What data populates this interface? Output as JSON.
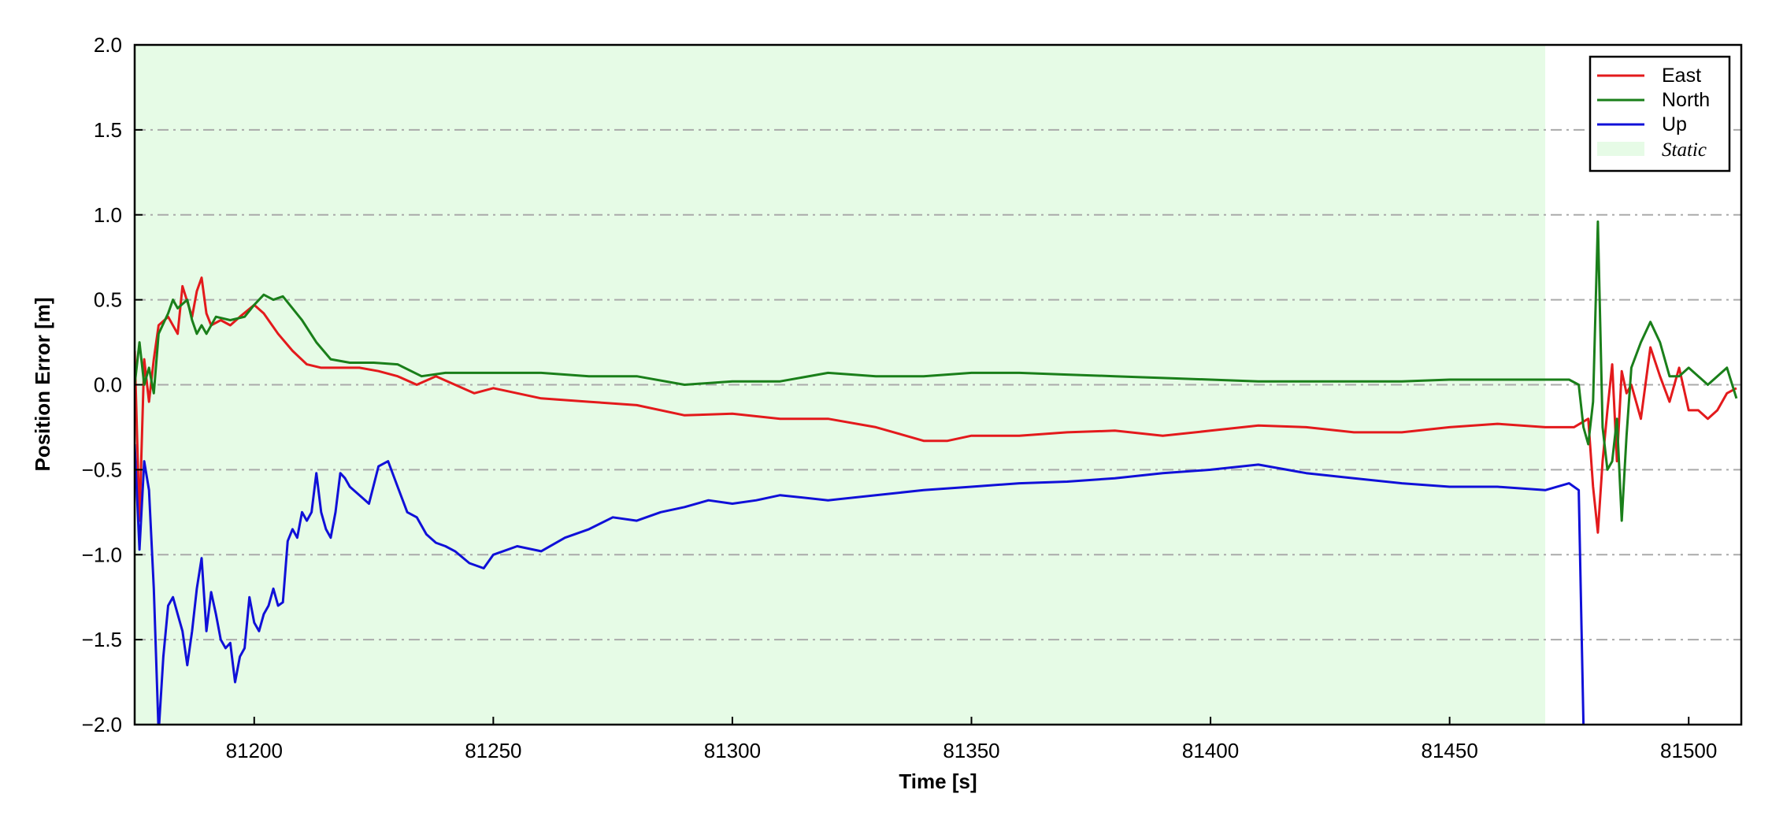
{
  "chart_data": {
    "type": "line",
    "xlabel": "Time [s]",
    "ylabel": "Position Error [m]",
    "xlim": [
      81175,
      81511
    ],
    "ylim": [
      -2.0,
      2.0
    ],
    "xticks": [
      81200,
      81250,
      81300,
      81350,
      81400,
      81450,
      81500
    ],
    "yticks": [
      2.0,
      1.5,
      1.0,
      0.5,
      0.0,
      -0.5,
      -1.0,
      -1.5,
      -2.0
    ],
    "ytick_labels": [
      "2.0",
      "1.5",
      "1.0",
      "0.5",
      "0.0",
      "−0.5",
      "−1.0",
      "−1.5",
      "−2.0"
    ],
    "grid": "horizontal dash-dot",
    "legend_placement": "top-right",
    "colors": {
      "East": "#e31a1c",
      "North": "#1a7f1a",
      "Up": "#1010d8",
      "static": "#e6fbe6",
      "grid": "#aaaaaa"
    },
    "shaded_regions": [
      {
        "label": "Static",
        "x": [
          81175,
          81470
        ]
      }
    ],
    "series": [
      {
        "name": "East",
        "color": "#e31a1c",
        "x": [
          81175,
          81176,
          81177,
          81178,
          81179,
          81180,
          81182,
          81184,
          81185,
          81187,
          81188,
          81189,
          81190,
          81191,
          81193,
          81195,
          81197,
          81200,
          81202,
          81205,
          81208,
          81211,
          81214,
          81218,
          81222,
          81226,
          81230,
          81234,
          81238,
          81242,
          81246,
          81250,
          81260,
          81270,
          81280,
          81290,
          81300,
          81310,
          81320,
          81330,
          81340,
          81345,
          81350,
          81360,
          81370,
          81380,
          81390,
          81400,
          81410,
          81420,
          81430,
          81440,
          81450,
          81460,
          81470,
          81476,
          81479,
          81480,
          81481,
          81482,
          81483,
          81484,
          81485,
          81486,
          81487,
          81488,
          81490,
          81492,
          81494,
          81496,
          81498,
          81500,
          81502,
          81504,
          81506,
          81508,
          81510
        ],
        "y": [
          0.2,
          -0.8,
          0.15,
          -0.1,
          0.15,
          0.35,
          0.4,
          0.3,
          0.58,
          0.4,
          0.55,
          0.63,
          0.42,
          0.35,
          0.38,
          0.35,
          0.4,
          0.47,
          0.42,
          0.3,
          0.2,
          0.12,
          0.1,
          0.1,
          0.1,
          0.08,
          0.05,
          0.0,
          0.05,
          0.0,
          -0.05,
          -0.02,
          -0.08,
          -0.1,
          -0.12,
          -0.18,
          -0.17,
          -0.2,
          -0.2,
          -0.25,
          -0.33,
          -0.33,
          -0.3,
          -0.3,
          -0.28,
          -0.27,
          -0.3,
          -0.27,
          -0.24,
          -0.25,
          -0.28,
          -0.28,
          -0.25,
          -0.23,
          -0.25,
          -0.25,
          -0.2,
          -0.6,
          -0.87,
          -0.45,
          -0.15,
          0.12,
          -0.45,
          0.08,
          -0.05,
          0.0,
          -0.2,
          0.22,
          0.05,
          -0.1,
          0.1,
          -0.15,
          -0.15,
          -0.2,
          -0.15,
          -0.05,
          -0.02
        ]
      },
      {
        "name": "North",
        "color": "#1a7f1a",
        "x": [
          81175,
          81176,
          81177,
          81178,
          81179,
          81180,
          81182,
          81183,
          81184,
          81186,
          81187,
          81188,
          81189,
          81190,
          81192,
          81195,
          81198,
          81200,
          81202,
          81204,
          81206,
          81208,
          81210,
          81213,
          81216,
          81220,
          81225,
          81230,
          81235,
          81240,
          81250,
          81260,
          81270,
          81280,
          81290,
          81300,
          81310,
          81320,
          81330,
          81340,
          81350,
          81360,
          81370,
          81380,
          81390,
          81400,
          81410,
          81420,
          81430,
          81440,
          81450,
          81460,
          81470,
          81475,
          81477,
          81478,
          81479,
          81480,
          81481,
          81482,
          81483,
          81484,
          81485,
          81486,
          81487,
          81488,
          81490,
          81492,
          81494,
          81496,
          81498,
          81500,
          81502,
          81504,
          81506,
          81508,
          81510
        ],
        "y": [
          0.0,
          0.25,
          0.0,
          0.1,
          -0.05,
          0.3,
          0.42,
          0.5,
          0.45,
          0.5,
          0.38,
          0.3,
          0.35,
          0.3,
          0.4,
          0.38,
          0.4,
          0.47,
          0.53,
          0.5,
          0.52,
          0.45,
          0.38,
          0.25,
          0.15,
          0.13,
          0.13,
          0.12,
          0.05,
          0.07,
          0.07,
          0.07,
          0.05,
          0.05,
          0.0,
          0.02,
          0.02,
          0.07,
          0.05,
          0.05,
          0.07,
          0.07,
          0.06,
          0.05,
          0.04,
          0.03,
          0.02,
          0.02,
          0.02,
          0.02,
          0.03,
          0.03,
          0.03,
          0.03,
          0.0,
          -0.25,
          -0.35,
          -0.1,
          0.96,
          -0.25,
          -0.5,
          -0.45,
          -0.2,
          -0.8,
          -0.3,
          0.1,
          0.25,
          0.37,
          0.25,
          0.05,
          0.05,
          0.1,
          0.05,
          0.0,
          0.05,
          0.1,
          -0.08
        ]
      },
      {
        "name": "Up",
        "color": "#1010d8",
        "x": [
          81175,
          81176,
          81177,
          81178,
          81179,
          81180,
          81181,
          81182,
          81183,
          81184,
          81185,
          81186,
          81187,
          81188,
          81189,
          81190,
          81191,
          81192,
          81193,
          81194,
          81195,
          81196,
          81197,
          81198,
          81199,
          81200,
          81201,
          81202,
          81203,
          81204,
          81205,
          81206,
          81207,
          81208,
          81209,
          81210,
          81211,
          81212,
          81213,
          81214,
          81215,
          81216,
          81217,
          81218,
          81219,
          81220,
          81222,
          81224,
          81226,
          81228,
          81230,
          81232,
          81234,
          81236,
          81238,
          81240,
          81242,
          81245,
          81248,
          81250,
          81255,
          81260,
          81265,
          81270,
          81275,
          81280,
          81285,
          81290,
          81295,
          81300,
          81305,
          81310,
          81320,
          81330,
          81340,
          81350,
          81360,
          81370,
          81380,
          81390,
          81400,
          81410,
          81420,
          81430,
          81440,
          81450,
          81460,
          81470,
          81475,
          81477,
          81478,
          81479,
          81480
        ],
        "y": [
          -0.35,
          -0.97,
          -0.45,
          -0.62,
          -1.2,
          -2.05,
          -1.6,
          -1.3,
          -1.25,
          -1.35,
          -1.45,
          -1.65,
          -1.45,
          -1.2,
          -1.02,
          -1.45,
          -1.22,
          -1.35,
          -1.5,
          -1.55,
          -1.52,
          -1.75,
          -1.6,
          -1.55,
          -1.25,
          -1.4,
          -1.45,
          -1.35,
          -1.3,
          -1.2,
          -1.3,
          -1.28,
          -0.92,
          -0.85,
          -0.9,
          -0.75,
          -0.8,
          -0.75,
          -0.52,
          -0.75,
          -0.85,
          -0.9,
          -0.75,
          -0.52,
          -0.55,
          -0.6,
          -0.65,
          -0.7,
          -0.48,
          -0.45,
          -0.6,
          -0.75,
          -0.78,
          -0.88,
          -0.93,
          -0.95,
          -0.98,
          -1.05,
          -1.08,
          -1.0,
          -0.95,
          -0.98,
          -0.9,
          -0.85,
          -0.78,
          -0.8,
          -0.75,
          -0.72,
          -0.68,
          -0.7,
          -0.68,
          -0.65,
          -0.68,
          -0.65,
          -0.62,
          -0.6,
          -0.58,
          -0.57,
          -0.55,
          -0.52,
          -0.5,
          -0.47,
          -0.52,
          -0.55,
          -0.58,
          -0.6,
          -0.6,
          -0.62,
          -0.58,
          -0.62,
          -2.0,
          -2.05,
          -2.05
        ]
      }
    ]
  },
  "legend": {
    "items": [
      {
        "label": "East",
        "color": "#e31a1c"
      },
      {
        "label": "North",
        "color": "#1a7f1a"
      },
      {
        "label": "Up",
        "color": "#1010d8"
      }
    ],
    "static_label": "Static"
  }
}
